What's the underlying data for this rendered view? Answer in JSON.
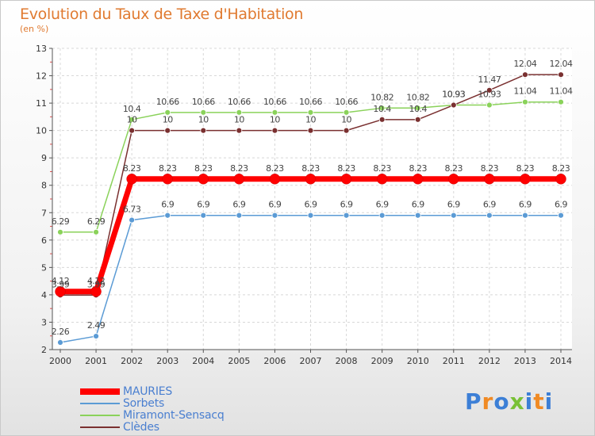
{
  "title": "Evolution du Taux de Taxe d'Habitation",
  "subtitle": "(en %)",
  "logo": {
    "text": "Proxiti",
    "colors": [
      "#3c7fd6",
      "#f08a24",
      "#3c7fd6",
      "#79c136",
      "#3c7fd6",
      "#f08a24",
      "#3c7fd6"
    ]
  },
  "chart_data": {
    "type": "line",
    "x": [
      2000,
      2001,
      2002,
      2003,
      2004,
      2005,
      2006,
      2007,
      2008,
      2009,
      2010,
      2011,
      2012,
      2013,
      2014
    ],
    "ylim": [
      2,
      13
    ],
    "yticks": [
      2,
      3,
      4,
      5,
      6,
      7,
      8,
      9,
      10,
      11,
      12,
      13
    ],
    "series": [
      {
        "name": "MAURIES",
        "color": "#ff0000",
        "values": [
          4.12,
          4.12,
          8.23,
          8.23,
          8.23,
          8.23,
          8.23,
          8.23,
          8.23,
          8.23,
          8.23,
          8.23,
          8.23,
          8.23,
          8.23
        ],
        "labels": [
          "4.12",
          "4.12",
          "8.23",
          "8.23",
          "8.23",
          "8.23",
          "8.23",
          "8.23",
          "8.23",
          "8.23",
          "8.23",
          "8.23",
          "8.23",
          "8.23",
          "8.23"
        ]
      },
      {
        "name": "Sorbets",
        "color": "#5b9bd5",
        "values": [
          2.26,
          2.49,
          6.73,
          6.9,
          6.9,
          6.9,
          6.9,
          6.9,
          6.9,
          6.9,
          6.9,
          6.9,
          6.9,
          6.9,
          6.9
        ],
        "labels": [
          "2.26",
          "2.49",
          "6.73",
          "6.9",
          "6.9",
          "6.9",
          "6.9",
          "6.9",
          "6.9",
          "6.9",
          "6.9",
          "6.9",
          "6.9",
          "6.9",
          "6.9"
        ]
      },
      {
        "name": "Miramont-Sensacq",
        "color": "#8ad25a",
        "values": [
          6.29,
          6.29,
          10.4,
          10.66,
          10.66,
          10.66,
          10.66,
          10.66,
          10.66,
          10.82,
          10.82,
          10.93,
          10.93,
          11.04,
          11.04
        ],
        "labels": [
          "6.29",
          "6.29",
          "10.4",
          "10.66",
          "10.66",
          "10.66",
          "10.66",
          "10.66",
          "10.66",
          "10.82",
          "10.82",
          "10.93",
          "10.93",
          "11.04",
          "11.04"
        ]
      },
      {
        "name": "Clèdes",
        "color": "#7a3030",
        "values": [
          3.99,
          3.99,
          10,
          10,
          10,
          10,
          10,
          10,
          10,
          10.4,
          10.4,
          10.93,
          11.47,
          12.04,
          12.04
        ],
        "labels": [
          "3.99",
          "3.99",
          "10",
          "10",
          "10",
          "10",
          "10",
          "10",
          "10",
          "10.4",
          "10.4",
          "10.93",
          "11.47",
          "12.04",
          "12.04"
        ]
      }
    ]
  }
}
